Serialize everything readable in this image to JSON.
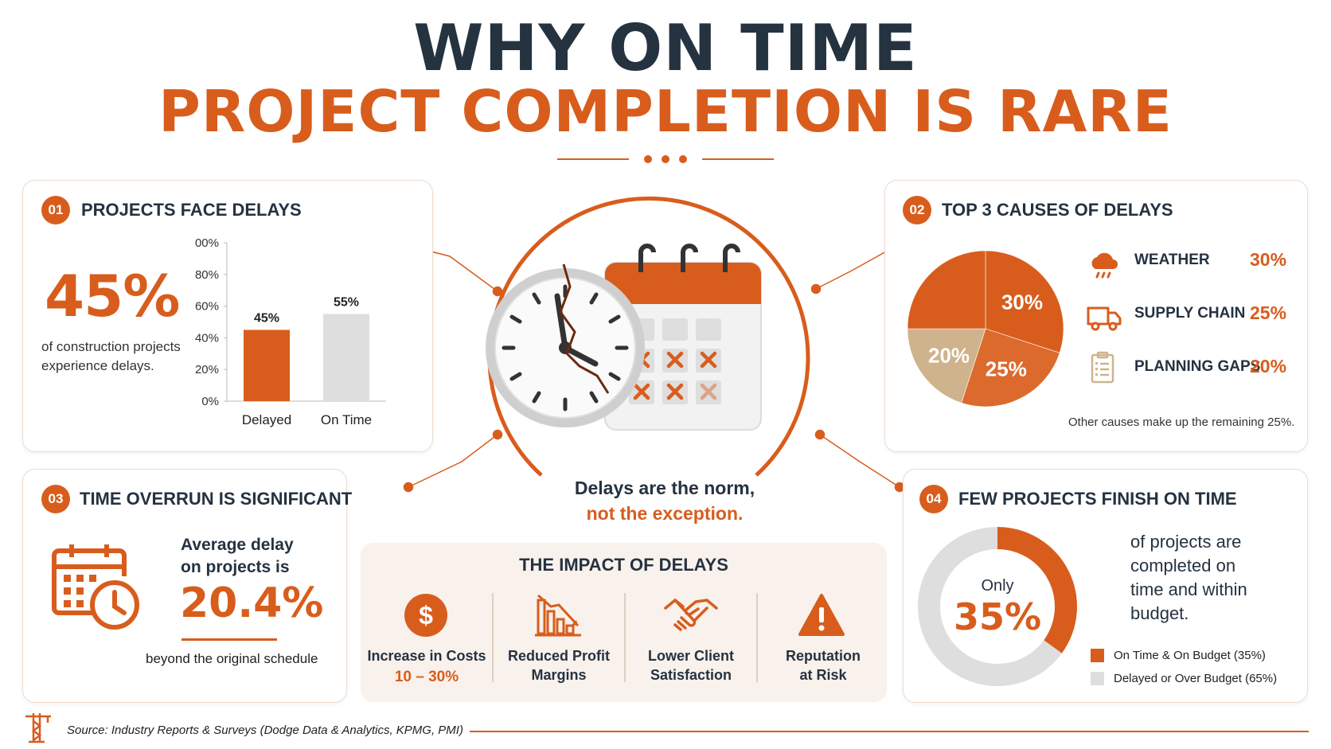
{
  "title": {
    "line1": "WHY ON TIME",
    "line2": "PROJECT COMPLETION IS RARE"
  },
  "colors": {
    "accent": "#d85d1d",
    "navy": "#253240",
    "grey": "#e0e0e0",
    "tan": "#cfb38d"
  },
  "panel1": {
    "number": "01",
    "title": "PROJECTS FACE DELAYS",
    "big_value": "45%",
    "desc_line1": "of construction projects",
    "desc_line2": "experience delays."
  },
  "panel2": {
    "number": "02",
    "title": "TOP 3 CAUSES OF DELAYS",
    "causes": [
      {
        "icon": "weather-icon",
        "label": "WEATHER",
        "value": "30%"
      },
      {
        "icon": "truck-icon",
        "label": "SUPPLY CHAIN",
        "value": "25%"
      },
      {
        "icon": "clipboard-icon",
        "label": "PLANNING GAPS",
        "value": "20%"
      }
    ],
    "note": "Other causes make up the remaining 25%."
  },
  "panel3": {
    "number": "03",
    "title": "TIME OVERRUN IS SIGNIFICANT",
    "line1": "Average delay",
    "line2": "on projects is",
    "value": "20.4%",
    "caption": "beyond the original schedule"
  },
  "panel4": {
    "number": "04",
    "title": "FEW PROJECTS FINISH ON TIME",
    "only": "Only",
    "value": "35%",
    "desc": [
      "of projects are",
      "completed on",
      "time and within",
      "budget."
    ],
    "legend": [
      {
        "label": "On Time & On Budget (35%)",
        "color": "#d85d1d"
      },
      {
        "label": "Delayed or Over Budget (65%)",
        "color": "#dedede"
      }
    ]
  },
  "center": {
    "line1": "Delays are the norm,",
    "line2": "not the exception."
  },
  "impact": {
    "title": "THE IMPACT OF DELAYS",
    "items": [
      {
        "icon": "dollar-icon",
        "line1": "Increase in Costs",
        "line2": "10 – 30%"
      },
      {
        "icon": "declining-chart-icon",
        "line1": "Reduced Profit",
        "line2": "Margins"
      },
      {
        "icon": "handshake-icon",
        "line1": "Lower Client",
        "line2": "Satisfaction"
      },
      {
        "icon": "warning-icon",
        "line1": "Reputation",
        "line2": "at Risk"
      }
    ]
  },
  "source": "Source: Industry Reports & Surveys (Dodge Data & Analytics, KPMG, PMI)",
  "chart_data": [
    {
      "type": "bar",
      "categories": [
        "Delayed",
        "On Time"
      ],
      "values": [
        45,
        55
      ],
      "data_labels": [
        "45%",
        "55%"
      ],
      "colors": [
        "#d85d1d",
        "#dedede"
      ],
      "ylim": [
        0,
        100
      ],
      "yticks": [
        0,
        20,
        40,
        60,
        80,
        100
      ],
      "ytick_labels": [
        "0%",
        "20%",
        "40%",
        "60%",
        "80%",
        "100%"
      ]
    },
    {
      "type": "pie",
      "labels": [
        "Weather",
        "Supply Chain",
        "Planning Gaps",
        "Other"
      ],
      "values": [
        30,
        25,
        20,
        25
      ],
      "slice_labels": [
        "30%",
        "25%",
        "20%",
        ""
      ],
      "colors": [
        "#d85d1d",
        "#dc6a2c",
        "#cfb38d",
        "#d85d1d"
      ]
    },
    {
      "type": "pie",
      "donut": true,
      "labels": [
        "On Time & On Budget",
        "Delayed or Over Budget"
      ],
      "values": [
        35,
        65
      ],
      "colors": [
        "#d85d1d",
        "#dedede"
      ]
    }
  ]
}
